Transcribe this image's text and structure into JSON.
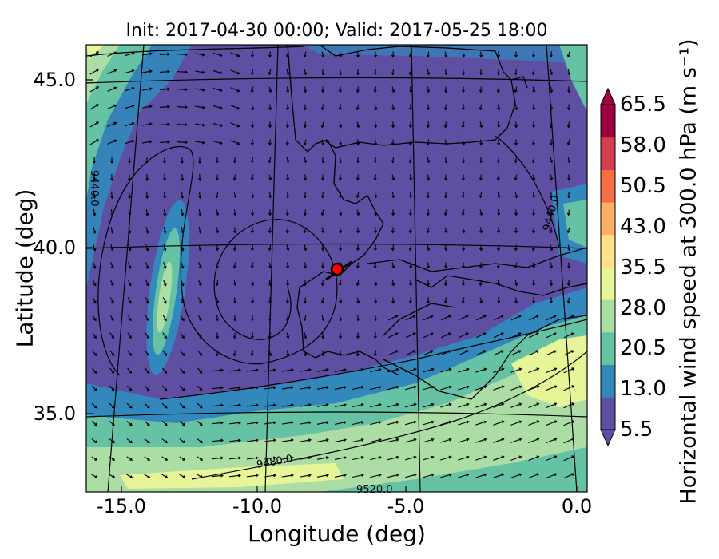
{
  "title": "Init: 2017-04-30 00:00; Valid: 2017-05-25 18:00",
  "x_axis": {
    "label": "Longitude (deg)",
    "range": [
      -16.0,
      0.3
    ],
    "ticks": [
      {
        "value": -15.0,
        "label": "-15.0"
      },
      {
        "value": -10.0,
        "label": "-10.0"
      },
      {
        "value": -5.0,
        "label": "-5.0"
      },
      {
        "value": 0.0,
        "label": "0.0"
      }
    ]
  },
  "y_axis": {
    "label": "Latitude (deg)",
    "range": [
      32.6,
      46.0
    ],
    "ticks": [
      {
        "value": 45.0,
        "label": "45.0"
      },
      {
        "value": 40.0,
        "label": "40.0"
      },
      {
        "value": 35.0,
        "label": "35.0"
      }
    ]
  },
  "colorbar": {
    "label": "Horizontal wind speed at 300.0 hPa (m s⁻¹)",
    "range": [
      5.5,
      65.5
    ],
    "extend": "both",
    "ticks": [
      {
        "value": 65.5,
        "label": "65.5"
      },
      {
        "value": 58.0,
        "label": "58.0"
      },
      {
        "value": 50.5,
        "label": "50.5"
      },
      {
        "value": 43.0,
        "label": "43.0"
      },
      {
        "value": 35.5,
        "label": "35.5"
      },
      {
        "value": 28.0,
        "label": "28.0"
      },
      {
        "value": 20.5,
        "label": "20.5"
      },
      {
        "value": 13.0,
        "label": "13.0"
      },
      {
        "value": 5.5,
        "label": "5.5"
      }
    ],
    "colors": [
      "#5e4fa2",
      "#3288bd",
      "#66c2a5",
      "#abdda4",
      "#e6f598",
      "#fee08b",
      "#fdae61",
      "#f46d43",
      "#d53e4f",
      "#9e0142"
    ]
  },
  "contour_labels": [
    "9440.0",
    "9440.0",
    "9480.0",
    "9520.0"
  ],
  "site_marker": {
    "lon": -7.6,
    "lat": 39.3,
    "color": "#ff0000"
  },
  "chart_data": {
    "type": "heatmap",
    "title": "Init: 2017-04-30 00:00; Valid: 2017-05-25 18:00",
    "xlabel": "Longitude (deg)",
    "ylabel": "Latitude (deg)",
    "xlim": [
      -16.0,
      0.3
    ],
    "ylim": [
      32.6,
      46.0
    ],
    "variable": "Horizontal wind speed at 300.0 hPa (m s⁻¹)",
    "value_range": [
      5.5,
      65.5
    ],
    "overlays": [
      "wind vectors",
      "geopotential height contours",
      "coastlines",
      "graticule"
    ]
  }
}
